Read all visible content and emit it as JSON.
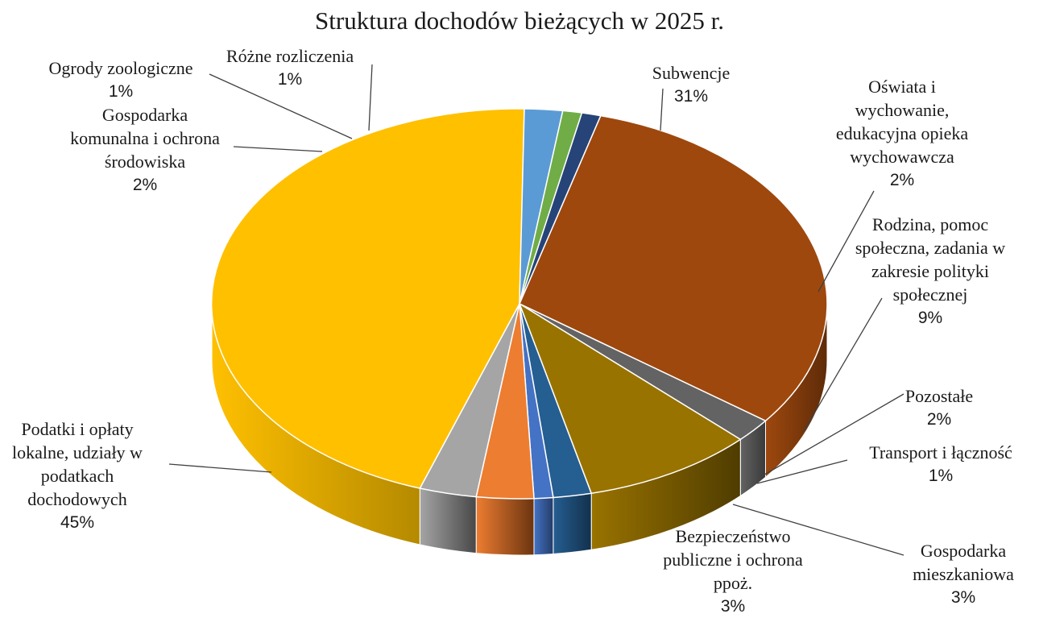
{
  "chart_data": {
    "type": "pie",
    "title": "Struktura dochodów bieżących w 2025 r.",
    "slices": [
      {
        "name": "Subwencje",
        "label_lines": [
          "Subwencje"
        ],
        "value": 31,
        "value_label": "31%",
        "color": "#9E480E",
        "side_color": "#5E2B08"
      },
      {
        "name": "Oświata i wychowanie, edukacyjna opieka wychowawcza",
        "label_lines": [
          "Oświata i",
          "wychowanie,",
          "edukacyjna opieka",
          "wychowawcza"
        ],
        "value": 2,
        "value_label": "2%",
        "color": "#636363",
        "side_color": "#3A3A3A"
      },
      {
        "name": "Rodzina, pomoc społeczna, zadania w zakresie polityki społecznej",
        "label_lines": [
          "Rodzina, pomoc",
          "społeczna, zadania w",
          "zakresie polityki",
          "społecznej"
        ],
        "value": 9,
        "value_label": "9%",
        "color": "#997300",
        "side_color": "#4F3C00"
      },
      {
        "name": "Pozostałe",
        "label_lines": [
          "Pozostałe"
        ],
        "value": 2,
        "value_label": "2%",
        "color": "#255E91",
        "side_color": "#13314C"
      },
      {
        "name": "Transport i łączność",
        "label_lines": [
          "Transport i łączność"
        ],
        "value": 1,
        "value_label": "1%",
        "color": "#4472C4",
        "side_color": "#243D68"
      },
      {
        "name": "Gospodarka mieszkaniowa",
        "label_lines": [
          "Gospodarka",
          "mieszkaniowa"
        ],
        "value": 3,
        "value_label": "3%",
        "color": "#ED7D31",
        "side_color": "#6B3410"
      },
      {
        "name": "Bezpieczeństwo publiczne i ochrona ppoż.",
        "label_lines": [
          "Bezpieczeństwo",
          "publiczne i ochrona",
          "ppoż."
        ],
        "value": 3,
        "value_label": "3%",
        "color": "#A5A5A5",
        "side_color": "#484848"
      },
      {
        "name": "Podatki i opłaty lokalne, udziały w podatkach dochodowych",
        "label_lines": [
          "Podatki i opłaty",
          "lokalne, udziały w",
          "podatkach",
          "dochodowych"
        ],
        "value": 45,
        "value_label": "45%",
        "color": "#FFC000",
        "side_color": "#B58A00"
      },
      {
        "name": "Gospodarka komunalna i ochrona środowiska",
        "label_lines": [
          "Gospodarka",
          "komunalna i ochrona",
          "środowiska"
        ],
        "value": 2,
        "value_label": "2%",
        "color": "#5B9BD5",
        "side_color": "#2E5B85"
      },
      {
        "name": "Ogrody zoologiczne",
        "label_lines": [
          "Ogrody zoologiczne"
        ],
        "value": 1,
        "value_label": "1%",
        "color": "#70AD47",
        "side_color": "#3E6526"
      },
      {
        "name": "Różne rozliczenia",
        "label_lines": [
          "Różne rozliczenia"
        ],
        "value": 1,
        "value_label": "1%",
        "color": "#264478",
        "side_color": "#131F38"
      }
    ],
    "legend": "none",
    "style": "3d-pie"
  }
}
